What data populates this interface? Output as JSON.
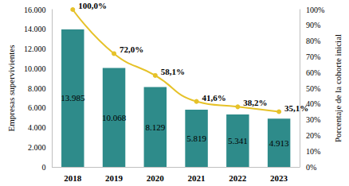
{
  "chart_data": {
    "type": "bar",
    "categories": [
      "2018",
      "2019",
      "2020",
      "2021",
      "2022",
      "2023"
    ],
    "ylabel": "Empresas supervivientes",
    "y2label": "Porcentaje de la cohorte inicial",
    "ylim": [
      0,
      16000
    ],
    "yticks": [
      0,
      {
        "value": 2000,
        "label": "2.000"
      },
      {
        "value": 4000,
        "label": "4.000"
      },
      {
        "value": 6000,
        "label": "6.000"
      },
      {
        "value": 8000,
        "label": "8.000"
      },
      {
        "value": 10000,
        "label": "10.000"
      },
      {
        "value": 12000,
        "label": "12.000"
      },
      {
        "value": 14000,
        "label": "14.000"
      },
      {
        "value": 16000,
        "label": "16.000"
      }
    ],
    "y2lim": [
      0,
      100
    ],
    "y2ticks": [
      {
        "value": 0,
        "label": "0%"
      },
      {
        "value": 10,
        "label": "10%"
      },
      {
        "value": 20,
        "label": "20%"
      },
      {
        "value": 30,
        "label": "30%"
      },
      {
        "value": 40,
        "label": "40%"
      },
      {
        "value": 50,
        "label": "50%"
      },
      {
        "value": 60,
        "label": "60%"
      },
      {
        "value": 70,
        "label": "70%"
      },
      {
        "value": 80,
        "label": "80%"
      },
      {
        "value": 90,
        "label": "90%"
      },
      {
        "value": 100,
        "label": "100%"
      }
    ],
    "grid": false,
    "series": [
      {
        "type": "bar",
        "color": "#2e8b8a",
        "values": [
          13985,
          10068,
          8129,
          5819,
          5341,
          4913
        ],
        "value_labels": [
          "13.985",
          "10.068",
          "8.129",
          "5.819",
          "5.341",
          "4.913"
        ],
        "data_labels": true
      },
      {
        "type": "line",
        "axis": "y2",
        "color": "#e6c229",
        "marker": "circle",
        "line_style": "solid",
        "values": [
          100,
          72,
          58.1,
          41.6,
          38.2,
          35.1
        ],
        "value_labels": [
          "100,0%",
          "72,0%",
          "58,1%",
          "41,6%",
          "38,2%",
          "35,1%"
        ],
        "data_labels": true
      }
    ]
  }
}
